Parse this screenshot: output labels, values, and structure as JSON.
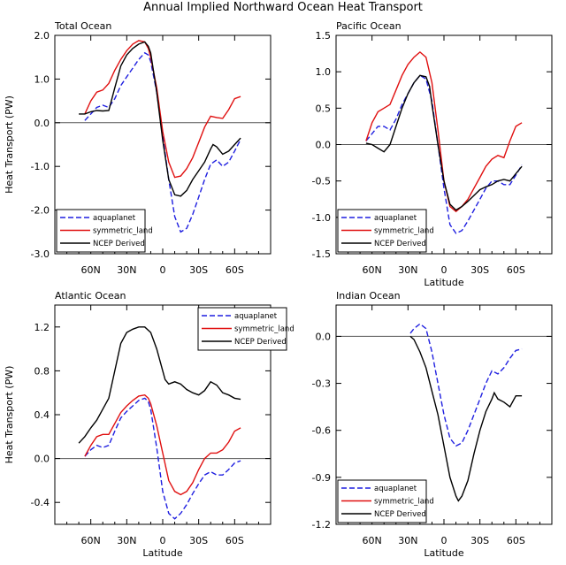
{
  "figure_title": "Annual Implied Northward Ocean Heat Transport",
  "colors": {
    "aquaplanet": "#1f1fe0",
    "symmetric_land": "#e01010",
    "ncep": "#000000",
    "axis": "#000000",
    "zero_line": "#555555"
  },
  "chart_data": [
    {
      "type": "line",
      "title": "Total Ocean",
      "xlabel": "",
      "ylabel": "Heat Transport (PW)",
      "xlim": [
        90,
        -90
      ],
      "ylim": [
        -3.0,
        2.0
      ],
      "x_ticks": [
        60,
        30,
        0,
        -30,
        -60
      ],
      "x_tick_labels": [
        "60N",
        "30N",
        "0",
        "30S",
        "60S"
      ],
      "y_ticks": [
        -3.0,
        -2.0,
        -1.0,
        0.0,
        1.0,
        2.0
      ],
      "y_tick_labels": [
        "-3.0",
        "-2.0",
        "-1.0",
        "0.0",
        "1.0",
        "2.0"
      ],
      "legend": {
        "position": "bottom-left",
        "entries": [
          "aquaplanet",
          "symmetric_land",
          "NCEP Derived"
        ]
      },
      "series": [
        {
          "name": "aquaplanet",
          "style": "dashed",
          "color": "#1f1fe0",
          "x": [
            65,
            60,
            55,
            50,
            45,
            40,
            35,
            30,
            25,
            20,
            15,
            12,
            10,
            5,
            0,
            -5,
            -10,
            -15,
            -20,
            -25,
            -30,
            -35,
            -40,
            -45,
            -50,
            -55,
            -60,
            -65
          ],
          "y": [
            0.05,
            0.2,
            0.35,
            0.4,
            0.35,
            0.55,
            0.85,
            1.05,
            1.25,
            1.45,
            1.6,
            1.55,
            1.4,
            0.7,
            -0.3,
            -1.3,
            -2.15,
            -2.5,
            -2.42,
            -2.1,
            -1.7,
            -1.3,
            -0.95,
            -0.85,
            -1.0,
            -0.9,
            -0.65,
            -0.38
          ]
        },
        {
          "name": "symmetric_land",
          "style": "solid",
          "color": "#e01010",
          "x": [
            65,
            60,
            55,
            50,
            45,
            40,
            35,
            30,
            25,
            20,
            15,
            12,
            10,
            5,
            0,
            -5,
            -10,
            -15,
            -20,
            -25,
            -30,
            -35,
            -40,
            -45,
            -50,
            -55,
            -60,
            -65
          ],
          "y": [
            0.2,
            0.5,
            0.7,
            0.75,
            0.9,
            1.2,
            1.45,
            1.65,
            1.8,
            1.88,
            1.85,
            1.7,
            1.5,
            0.8,
            -0.2,
            -0.9,
            -1.25,
            -1.22,
            -1.05,
            -0.8,
            -0.45,
            -0.1,
            0.15,
            0.12,
            0.1,
            0.3,
            0.55,
            0.6
          ]
        },
        {
          "name": "NCEP Derived",
          "style": "solid",
          "color": "#000000",
          "x": [
            70,
            65,
            60,
            55,
            50,
            45,
            40,
            35,
            30,
            25,
            20,
            15,
            12,
            10,
            5,
            0,
            -5,
            -10,
            -15,
            -20,
            -25,
            -30,
            -35,
            -40,
            -42,
            -45,
            -50,
            -55,
            -60,
            -65
          ],
          "y": [
            0.2,
            0.2,
            0.25,
            0.28,
            0.27,
            0.28,
            0.8,
            1.3,
            1.55,
            1.7,
            1.8,
            1.85,
            1.75,
            1.6,
            0.7,
            -0.4,
            -1.3,
            -1.65,
            -1.68,
            -1.55,
            -1.3,
            -1.1,
            -0.9,
            -0.6,
            -0.5,
            -0.55,
            -0.72,
            -0.65,
            -0.5,
            -0.35
          ]
        }
      ]
    },
    {
      "type": "line",
      "title": "Pacific Ocean",
      "xlabel": "Latitude",
      "ylabel": "",
      "xlim": [
        90,
        -90
      ],
      "ylim": [
        -1.5,
        1.5
      ],
      "x_ticks": [
        60,
        30,
        0,
        -30,
        -60
      ],
      "x_tick_labels": [
        "60N",
        "30N",
        "0",
        "30S",
        "60S"
      ],
      "y_ticks": [
        -1.5,
        -1.0,
        -0.5,
        0.0,
        0.5,
        1.0,
        1.5
      ],
      "y_tick_labels": [
        "-1.5",
        "-1.0",
        "-0.5",
        "0.0",
        "0.5",
        "1.0",
        "1.5"
      ],
      "legend": {
        "position": "bottom-left",
        "entries": [
          "aquaplanet",
          "symmetric_land",
          "NCEP Derived"
        ]
      },
      "series": [
        {
          "name": "aquaplanet",
          "style": "dashed",
          "color": "#1f1fe0",
          "x": [
            65,
            60,
            55,
            50,
            45,
            40,
            35,
            30,
            25,
            20,
            15,
            10,
            5,
            0,
            -5,
            -10,
            -15,
            -20,
            -25,
            -30,
            -35,
            -40,
            -45,
            -50,
            -55,
            -60,
            -65
          ],
          "y": [
            0.05,
            0.15,
            0.25,
            0.25,
            0.2,
            0.35,
            0.55,
            0.7,
            0.85,
            0.95,
            0.9,
            0.6,
            0.0,
            -0.6,
            -1.1,
            -1.22,
            -1.18,
            -1.05,
            -0.9,
            -0.75,
            -0.6,
            -0.5,
            -0.5,
            -0.55,
            -0.55,
            -0.42,
            -0.28
          ]
        },
        {
          "name": "symmetric_land",
          "style": "solid",
          "color": "#e01010",
          "x": [
            65,
            60,
            55,
            50,
            45,
            40,
            35,
            30,
            25,
            20,
            15,
            10,
            5,
            0,
            -5,
            -10,
            -15,
            -20,
            -25,
            -30,
            -35,
            -40,
            -45,
            -50,
            -55,
            -60,
            -65
          ],
          "y": [
            0.05,
            0.3,
            0.45,
            0.5,
            0.55,
            0.75,
            0.95,
            1.1,
            1.2,
            1.27,
            1.2,
            0.85,
            0.2,
            -0.5,
            -0.85,
            -0.92,
            -0.85,
            -0.75,
            -0.6,
            -0.45,
            -0.3,
            -0.2,
            -0.15,
            -0.18,
            0.05,
            0.25,
            0.3
          ]
        },
        {
          "name": "NCEP Derived",
          "style": "solid",
          "color": "#000000",
          "x": [
            65,
            60,
            55,
            50,
            45,
            40,
            35,
            30,
            25,
            20,
            15,
            12,
            10,
            5,
            0,
            -5,
            -10,
            -15,
            -20,
            -25,
            -30,
            -35,
            -40,
            -45,
            -50,
            -55,
            -60,
            -65
          ],
          "y": [
            0.02,
            0.0,
            -0.05,
            -0.1,
            0.0,
            0.25,
            0.5,
            0.7,
            0.85,
            0.95,
            0.93,
            0.8,
            0.55,
            0.0,
            -0.5,
            -0.82,
            -0.9,
            -0.85,
            -0.78,
            -0.7,
            -0.62,
            -0.58,
            -0.55,
            -0.5,
            -0.48,
            -0.5,
            -0.4,
            -0.3
          ]
        }
      ]
    },
    {
      "type": "line",
      "title": "Atlantic Ocean",
      "xlabel": "Latitude",
      "ylabel": "Heat Transport (PW)",
      "xlim": [
        90,
        -90
      ],
      "ylim": [
        -0.6,
        1.4
      ],
      "x_ticks": [
        60,
        30,
        0,
        -30,
        -60
      ],
      "x_tick_labels": [
        "60N",
        "30N",
        "0",
        "30S",
        "60S"
      ],
      "y_ticks": [
        -0.4,
        0.0,
        0.4,
        0.8,
        1.2
      ],
      "y_tick_labels": [
        "-0.4",
        "0.0",
        "0.4",
        "0.8",
        "1.2"
      ],
      "legend": {
        "position": "top-right",
        "entries": [
          "aquaplanet",
          "symmetric_land",
          "NCEP Derived"
        ]
      },
      "series": [
        {
          "name": "aquaplanet",
          "style": "dashed",
          "color": "#1f1fe0",
          "x": [
            65,
            60,
            55,
            50,
            45,
            40,
            35,
            30,
            25,
            20,
            15,
            12,
            10,
            5,
            0,
            -5,
            -10,
            -15,
            -20,
            -25,
            -30,
            -35,
            -40,
            -45,
            -50,
            -55,
            -60,
            -65
          ],
          "y": [
            0.02,
            0.08,
            0.12,
            0.1,
            0.12,
            0.25,
            0.37,
            0.43,
            0.48,
            0.53,
            0.55,
            0.52,
            0.45,
            0.1,
            -0.3,
            -0.5,
            -0.55,
            -0.5,
            -0.42,
            -0.32,
            -0.23,
            -0.15,
            -0.12,
            -0.15,
            -0.15,
            -0.1,
            -0.04,
            -0.02
          ]
        },
        {
          "name": "symmetric_land",
          "style": "solid",
          "color": "#e01010",
          "x": [
            65,
            60,
            55,
            50,
            45,
            40,
            35,
            30,
            25,
            20,
            15,
            12,
            10,
            5,
            0,
            -5,
            -10,
            -15,
            -20,
            -25,
            -30,
            -35,
            -40,
            -45,
            -50,
            -55,
            -60,
            -65
          ],
          "y": [
            0.02,
            0.12,
            0.2,
            0.22,
            0.22,
            0.32,
            0.42,
            0.48,
            0.53,
            0.57,
            0.58,
            0.55,
            0.5,
            0.3,
            0.05,
            -0.2,
            -0.3,
            -0.33,
            -0.3,
            -0.22,
            -0.1,
            0.0,
            0.05,
            0.05,
            0.08,
            0.15,
            0.25,
            0.28
          ]
        },
        {
          "name": "NCEP Derived",
          "style": "solid",
          "color": "#000000",
          "x": [
            70,
            65,
            60,
            55,
            50,
            45,
            40,
            35,
            30,
            25,
            20,
            15,
            10,
            5,
            0,
            -2,
            -5,
            -10,
            -15,
            -20,
            -25,
            -30,
            -35,
            -40,
            -45,
            -50,
            -55,
            -60,
            -65
          ],
          "y": [
            0.14,
            0.2,
            0.28,
            0.35,
            0.45,
            0.55,
            0.8,
            1.05,
            1.15,
            1.18,
            1.2,
            1.2,
            1.15,
            1.0,
            0.8,
            0.72,
            0.68,
            0.7,
            0.68,
            0.63,
            0.6,
            0.58,
            0.62,
            0.7,
            0.67,
            0.6,
            0.58,
            0.55,
            0.54
          ]
        }
      ]
    },
    {
      "type": "line",
      "title": "Indian Ocean",
      "xlabel": "Latitude",
      "ylabel": "",
      "xlim": [
        90,
        -90
      ],
      "ylim": [
        -1.2,
        0.2
      ],
      "x_ticks": [
        60,
        30,
        0,
        -30,
        -60
      ],
      "x_tick_labels": [
        "60N",
        "30N",
        "0",
        "30S",
        "60S"
      ],
      "y_ticks": [
        -1.2,
        -0.9,
        -0.6,
        -0.3,
        0.0
      ],
      "y_tick_labels": [
        "-1.2",
        "-0.9",
        "-0.6",
        "-0.3",
        "0.0"
      ],
      "legend": {
        "position": "bottom-left",
        "entries": [
          "aquaplanet",
          "symmetric_land",
          "NCEP Derived"
        ]
      },
      "series": [
        {
          "name": "aquaplanet",
          "style": "dashed",
          "color": "#1f1fe0",
          "x": [
            28,
            25,
            20,
            15,
            10,
            5,
            0,
            -5,
            -10,
            -15,
            -20,
            -25,
            -30,
            -35,
            -40,
            -45,
            -50,
            -55,
            -60,
            -65
          ],
          "y": [
            0.02,
            0.05,
            0.08,
            0.05,
            -0.1,
            -0.3,
            -0.5,
            -0.65,
            -0.7,
            -0.68,
            -0.6,
            -0.5,
            -0.4,
            -0.3,
            -0.22,
            -0.24,
            -0.2,
            -0.14,
            -0.09,
            -0.08
          ]
        },
        {
          "name": "symmetric_land",
          "style": "solid",
          "color": "#e01010",
          "x": [],
          "y": []
        },
        {
          "name": "NCEP Derived",
          "style": "solid",
          "color": "#000000",
          "x": [
            28,
            25,
            20,
            15,
            10,
            5,
            0,
            -5,
            -10,
            -12,
            -15,
            -20,
            -25,
            -30,
            -35,
            -40,
            -42,
            -45,
            -50,
            -55,
            -60,
            -65
          ],
          "y": [
            0.0,
            -0.02,
            -0.1,
            -0.2,
            -0.35,
            -0.5,
            -0.7,
            -0.9,
            -1.02,
            -1.05,
            -1.02,
            -0.92,
            -0.75,
            -0.6,
            -0.48,
            -0.4,
            -0.36,
            -0.4,
            -0.42,
            -0.45,
            -0.38,
            -0.38
          ]
        }
      ]
    }
  ]
}
